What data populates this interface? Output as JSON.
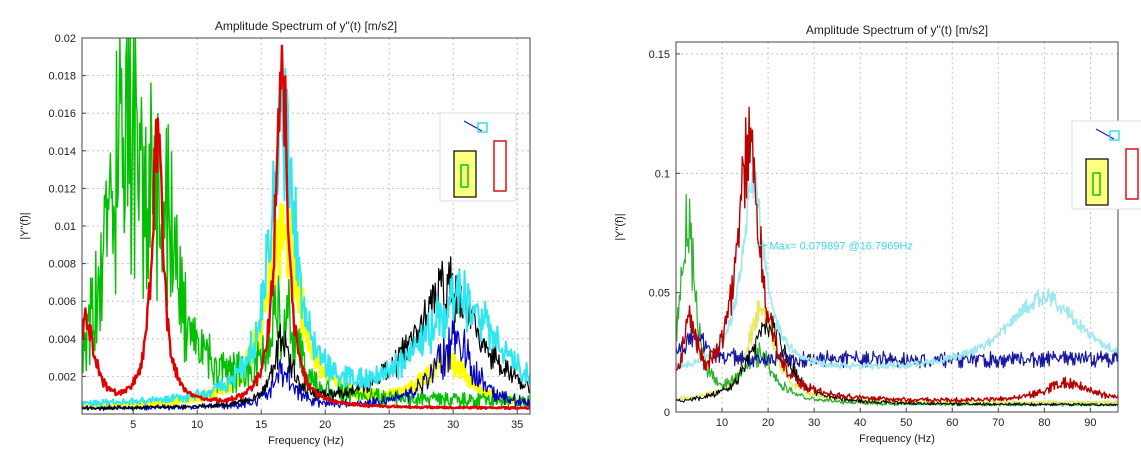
{
  "chart_data": [
    {
      "type": "line",
      "title": "Amplitude Spectrum of y\"(t) [m/s2]",
      "xlabel": "Frequency (Hz)",
      "ylabel": "|Y\"(f)|",
      "xlim": [
        1,
        36
      ],
      "ylim": [
        0,
        0.02
      ],
      "xticks": [
        "5",
        "10",
        "15",
        "20",
        "25",
        "30",
        "35"
      ],
      "yticks": [
        "0.002",
        "0.004",
        "0.006",
        "0.008",
        "0.01",
        "0.012",
        "0.014",
        "0.016",
        "0.018",
        "0.02"
      ],
      "xtick_values": [
        5,
        10,
        15,
        20,
        25,
        30,
        35
      ],
      "ytick_values": [
        0.002,
        0.004,
        0.006,
        0.008,
        0.01,
        0.012,
        0.014,
        0.016,
        0.018,
        0.02
      ],
      "grid": true,
      "legend": "right",
      "series": [
        {
          "color": "#ffff00",
          "peaks": [
            {
              "f": 16.7,
              "a": 0.0095,
              "w": 1.6
            },
            {
              "f": 29.5,
              "a": 0.0025,
              "w": 2.0
            }
          ],
          "base": 0.0003,
          "noise": 0.4,
          "seed": 11,
          "lw": 3.5
        },
        {
          "color": "#00c000",
          "peaks": [
            {
              "f": 4.5,
              "a": 0.0135,
              "w": 2.0
            },
            {
              "f": 7.5,
              "a": 0.006,
              "w": 1.5
            },
            {
              "f": 16.7,
              "a": 0.0045,
              "w": 1.2
            }
          ],
          "base": 0.0006,
          "noise": 0.85,
          "seed": 3,
          "lw": 1.4
        },
        {
          "color": "#0000c8",
          "peaks": [
            {
              "f": 16.7,
              "a": 0.002,
              "w": 1.0
            },
            {
              "f": 30.0,
              "a": 0.0035,
              "w": 1.8
            }
          ],
          "base": 0.0003,
          "noise": 0.7,
          "seed": 7,
          "lw": 1.2
        },
        {
          "color": "#000000",
          "peaks": [
            {
              "f": 29.5,
              "a": 0.0064,
              "w": 3.2
            },
            {
              "f": 16.7,
              "a": 0.0035,
              "w": 0.8
            }
          ],
          "base": 0.0002,
          "noise": 0.45,
          "seed": 5,
          "lw": 1.2
        },
        {
          "color": "#30e6f0",
          "peaks": [
            {
              "f": 16.7,
              "a": 0.0148,
              "w": 1.2
            },
            {
              "f": 30.5,
              "a": 0.0055,
              "w": 3.5
            }
          ],
          "base": 0.0004,
          "noise": 0.45,
          "seed": 9,
          "lw": 2.0
        },
        {
          "color": "#e00000",
          "peaks": [
            {
              "f": 6.9,
              "a": 0.0142,
              "w": 0.55
            },
            {
              "f": 16.6,
              "a": 0.0192,
              "w": 0.55
            },
            {
              "f": 1.3,
              "a": 0.0045,
              "w": 0.8
            }
          ],
          "base": 0.0003,
          "noise": 0.25,
          "seed": 13,
          "lw": 2.4
        }
      ]
    },
    {
      "type": "line",
      "title": "Amplitude Spectrum of y\"(t) [m/s2]",
      "xlabel": "Frequency (Hz)",
      "ylabel": "|Y\"(f)|",
      "xlim": [
        0,
        96
      ],
      "ylim": [
        0,
        0.155
      ],
      "xticks": [
        "10",
        "20",
        "30",
        "40",
        "50",
        "60",
        "70",
        "80",
        "90"
      ],
      "yticks": [
        "0",
        "0.05",
        "0.1",
        "0.15"
      ],
      "xtick_values": [
        10,
        20,
        30,
        40,
        50,
        60,
        70,
        80,
        90
      ],
      "ytick_values": [
        0,
        0.05,
        0.1,
        0.15
      ],
      "grid": true,
      "legend": "right",
      "annotation": {
        "text": "Max= 0.079897 @16.7969Hz",
        "f": 16.7969,
        "a": 0.079897,
        "color": "#40d8e8"
      },
      "series": [
        {
          "color": "#e8e860",
          "peaks": [
            {
              "f": 18.5,
              "a": 0.04,
              "w": 3.5
            }
          ],
          "base": 0.004,
          "noise": 0.25,
          "seed": 21,
          "lw": 1.4
        },
        {
          "color": "#30b030",
          "peaks": [
            {
              "f": 2.5,
              "a": 0.075,
              "w": 2.0
            },
            {
              "f": 18.0,
              "a": 0.02,
              "w": 4.0
            }
          ],
          "base": 0.003,
          "noise": 0.35,
          "seed": 23,
          "lw": 1.2
        },
        {
          "color": "#1818a0",
          "peaks": [
            {
              "f": 4.0,
              "a": 0.01,
              "w": 3.0
            }
          ],
          "base": 0.022,
          "noise": 0.25,
          "seed": 25,
          "lw": 1.2
        },
        {
          "color": "#000000",
          "peaks": [
            {
              "f": 20.0,
              "a": 0.035,
              "w": 4.5
            }
          ],
          "base": 0.003,
          "noise": 0.3,
          "seed": 27,
          "lw": 1.0
        },
        {
          "color": "#a0e8f0",
          "peaks": [
            {
              "f": 16.8,
              "a": 0.0799,
              "w": 3.0
            },
            {
              "f": 80.0,
              "a": 0.032,
              "w": 10.0
            }
          ],
          "base": 0.016,
          "noise": 0.12,
          "seed": 29,
          "lw": 1.6
        },
        {
          "color": "#b80000",
          "peaks": [
            {
              "f": 15.8,
              "a": 0.104,
              "w": 3.2
            },
            {
              "f": 3.0,
              "a": 0.03,
              "w": 1.8
            },
            {
              "f": 85.0,
              "a": 0.008,
              "w": 6.0
            }
          ],
          "base": 0.004,
          "noise": 0.3,
          "seed": 31,
          "lw": 1.4
        }
      ]
    }
  ]
}
